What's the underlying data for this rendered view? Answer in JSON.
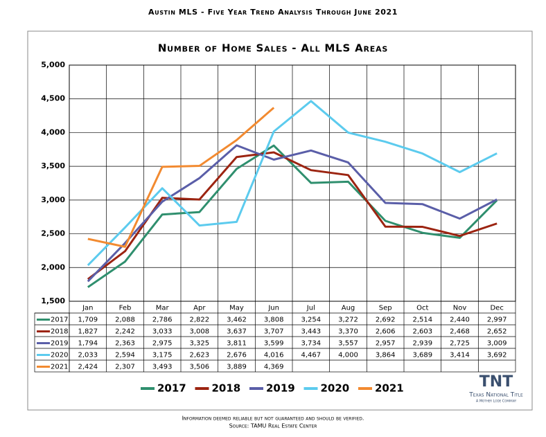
{
  "chart_data": {
    "type": "line",
    "header": "Austin MLS - Five Year Trend Analysis Through June 2021",
    "title": "Number of Home Sales - All MLS Areas",
    "categories": [
      "Jan",
      "Feb",
      "Mar",
      "Apr",
      "May",
      "Jun",
      "Jul",
      "Aug",
      "Sep",
      "Oct",
      "Nov",
      "Dec"
    ],
    "ylim": [
      1500,
      5000
    ],
    "yticks": [
      {
        "value": 1500,
        "label": "1,500"
      },
      {
        "value": 2000,
        "label": "2,000"
      },
      {
        "value": 2500,
        "label": "2,500"
      },
      {
        "value": 3000,
        "label": "3,000"
      },
      {
        "value": 3500,
        "label": "3,500"
      },
      {
        "value": 4000,
        "label": "4,000"
      },
      {
        "value": 4500,
        "label": "4,500"
      },
      {
        "value": 5000,
        "label": "5,000"
      }
    ],
    "grid": true,
    "series": [
      {
        "name": "2017",
        "color": "#2f8f6e",
        "values": [
          1709,
          2088,
          2786,
          2822,
          3462,
          3808,
          3254,
          3272,
          2692,
          2514,
          2440,
          2997
        ],
        "value_labels": [
          "1,709",
          "2,088",
          "2,786",
          "2,822",
          "3,462",
          "3,808",
          "3,254",
          "3,272",
          "2,692",
          "2,514",
          "2,440",
          "2,997"
        ]
      },
      {
        "name": "2018",
        "color": "#9c2411",
        "values": [
          1827,
          2242,
          3033,
          3008,
          3637,
          3707,
          3443,
          3370,
          2606,
          2603,
          2468,
          2652
        ],
        "value_labels": [
          "1,827",
          "2,242",
          "3,033",
          "3,008",
          "3,637",
          "3,707",
          "3,443",
          "3,370",
          "2,606",
          "2,603",
          "2,468",
          "2,652"
        ]
      },
      {
        "name": "2019",
        "color": "#5a5ea8",
        "values": [
          1794,
          2363,
          2975,
          3325,
          3811,
          3599,
          3734,
          3557,
          2957,
          2939,
          2725,
          3009
        ],
        "value_labels": [
          "1,794",
          "2,363",
          "2,975",
          "3,325",
          "3,811",
          "3,599",
          "3,734",
          "3,557",
          "2,957",
          "2,939",
          "2,725",
          "3,009"
        ]
      },
      {
        "name": "2020",
        "color": "#5ccbee",
        "values": [
          2033,
          2594,
          3175,
          2623,
          2676,
          4016,
          4467,
          4000,
          3864,
          3689,
          3414,
          3692
        ],
        "value_labels": [
          "2,033",
          "2,594",
          "3,175",
          "2,623",
          "2,676",
          "4,016",
          "4,467",
          "4,000",
          "3,864",
          "3,689",
          "3,414",
          "3,692"
        ]
      },
      {
        "name": "2021",
        "color": "#f28a30",
        "values": [
          2424,
          2307,
          3493,
          3506,
          3889,
          4369,
          null,
          null,
          null,
          null,
          null,
          null
        ],
        "value_labels": [
          "2,424",
          "2,307",
          "3,493",
          "3,506",
          "3,889",
          "4,369",
          null,
          null,
          null,
          null,
          null,
          null
        ]
      }
    ],
    "logo": {
      "mark": "TNT",
      "name": "Texas National Title",
      "tagline": "A Mother Lode Company"
    },
    "footer": [
      "Information deemed reliable but not guaranteed and should be verified.",
      "Source: TAMU Real Estate Center"
    ]
  }
}
